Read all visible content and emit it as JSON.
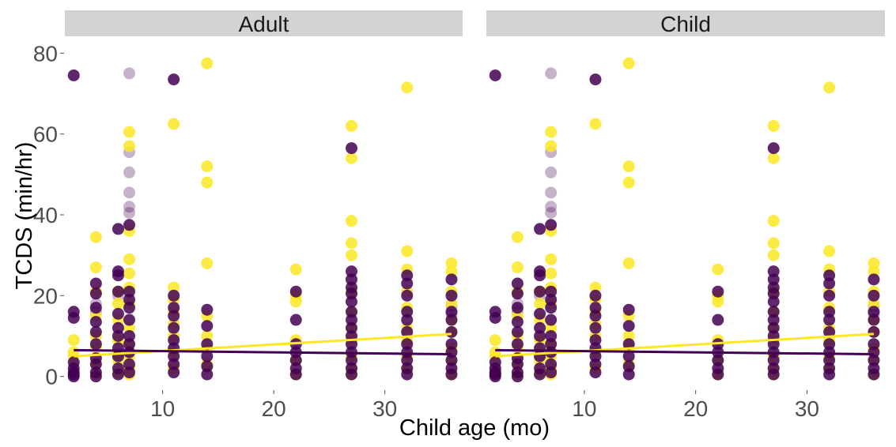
{
  "chart_data": {
    "type": "scatter",
    "xlabel": "Child age (mo)",
    "ylabel": "TCDS (min/hr)",
    "xlim": [
      1.2,
      37
    ],
    "ylim": [
      -3,
      83
    ],
    "x_ticks": [
      10,
      20,
      30
    ],
    "y_ticks": [
      0,
      20,
      40,
      60,
      80
    ],
    "grid": false,
    "legend": "none",
    "colors": {
      "purple": "#440154",
      "yellow": "#fde725"
    },
    "panels": [
      {
        "name": "Adult"
      },
      {
        "name": "Child"
      }
    ],
    "series": [
      {
        "color": "#440154",
        "points": [
          [
            2,
            74.5
          ],
          [
            2,
            16
          ],
          [
            2,
            14.5
          ],
          [
            2,
            3.5
          ],
          [
            2,
            2
          ],
          [
            2,
            1
          ],
          [
            2,
            0.5
          ],
          [
            2,
            0
          ],
          [
            4,
            23
          ],
          [
            4,
            20.5
          ],
          [
            4,
            17
          ],
          [
            4,
            13.5
          ],
          [
            4,
            11
          ],
          [
            4,
            8
          ],
          [
            4,
            4.5
          ],
          [
            4,
            3
          ],
          [
            4,
            1
          ],
          [
            4,
            0
          ],
          [
            6,
            36.5
          ],
          [
            6,
            26
          ],
          [
            6,
            25
          ],
          [
            6,
            21
          ],
          [
            6,
            15.5
          ],
          [
            6,
            12
          ],
          [
            6,
            10
          ],
          [
            6,
            7
          ],
          [
            6,
            5
          ],
          [
            6,
            2
          ],
          [
            6,
            0.5
          ],
          [
            7,
            37.5
          ],
          [
            7,
            21
          ],
          [
            7,
            19
          ],
          [
            7,
            17
          ],
          [
            7,
            14
          ],
          [
            7,
            10
          ],
          [
            7,
            8
          ],
          [
            7,
            6
          ],
          [
            7,
            3
          ],
          [
            7,
            1
          ],
          [
            11,
            73.5
          ],
          [
            11,
            20
          ],
          [
            11,
            17
          ],
          [
            11,
            15
          ],
          [
            11,
            12
          ],
          [
            11,
            9
          ],
          [
            11,
            7
          ],
          [
            11,
            5
          ],
          [
            11,
            3
          ],
          [
            11,
            1
          ],
          [
            14,
            16.5
          ],
          [
            14,
            12.5
          ],
          [
            14,
            8
          ],
          [
            14,
            5
          ],
          [
            14,
            2.5
          ],
          [
            14,
            0.5
          ],
          [
            22,
            21
          ],
          [
            22,
            14
          ],
          [
            22,
            8
          ],
          [
            22,
            6
          ],
          [
            22,
            4
          ],
          [
            22,
            2
          ],
          [
            22,
            0.5
          ],
          [
            27,
            56.5
          ],
          [
            27,
            26
          ],
          [
            27,
            24
          ],
          [
            27,
            22
          ],
          [
            27,
            20.5
          ],
          [
            27,
            18.5
          ],
          [
            27,
            16
          ],
          [
            27,
            14
          ],
          [
            27,
            12
          ],
          [
            27,
            10
          ],
          [
            27,
            8
          ],
          [
            27,
            6
          ],
          [
            27,
            4
          ],
          [
            27,
            2
          ],
          [
            27,
            0.5
          ],
          [
            32,
            25
          ],
          [
            32,
            23
          ],
          [
            32,
            20
          ],
          [
            32,
            16
          ],
          [
            32,
            14
          ],
          [
            32,
            11
          ],
          [
            32,
            8
          ],
          [
            32,
            6
          ],
          [
            32,
            4
          ],
          [
            32,
            2
          ],
          [
            32,
            0.5
          ],
          [
            36,
            24
          ],
          [
            36,
            20
          ],
          [
            36,
            16
          ],
          [
            36,
            14
          ],
          [
            36,
            11
          ],
          [
            36,
            8
          ],
          [
            36,
            6
          ],
          [
            36,
            4
          ],
          [
            36,
            2
          ],
          [
            36,
            0.5
          ]
        ],
        "trend": {
          "x": [
            2,
            36
          ],
          "y": [
            6.5,
            5.5
          ]
        }
      },
      {
        "color": "#fde725",
        "points": [
          [
            2,
            9
          ],
          [
            2,
            6
          ],
          [
            2,
            5
          ],
          [
            4,
            34.5
          ],
          [
            4,
            27
          ],
          [
            4,
            21
          ],
          [
            4,
            15
          ],
          [
            4,
            10
          ],
          [
            4,
            7
          ],
          [
            4,
            3
          ],
          [
            4,
            0.5
          ],
          [
            6,
            21
          ],
          [
            6,
            18
          ],
          [
            6,
            14
          ],
          [
            6,
            9
          ],
          [
            6,
            6
          ],
          [
            6,
            4
          ],
          [
            6,
            1
          ],
          [
            7,
            60.5
          ],
          [
            7,
            57
          ],
          [
            7,
            36
          ],
          [
            7,
            29
          ],
          [
            7,
            25.5
          ],
          [
            7,
            22
          ],
          [
            7,
            18
          ],
          [
            7,
            12
          ],
          [
            7,
            8
          ],
          [
            7,
            5
          ],
          [
            7,
            2
          ],
          [
            7,
            0.5
          ],
          [
            11,
            62.5
          ],
          [
            11,
            22
          ],
          [
            11,
            19
          ],
          [
            11,
            16
          ],
          [
            11,
            13
          ],
          [
            11,
            10
          ],
          [
            11,
            6
          ],
          [
            11,
            2
          ],
          [
            14,
            77.5
          ],
          [
            14,
            52
          ],
          [
            14,
            48
          ],
          [
            14,
            28
          ],
          [
            14,
            15
          ],
          [
            14,
            10
          ],
          [
            14,
            7
          ],
          [
            14,
            3
          ],
          [
            22,
            26.5
          ],
          [
            22,
            20
          ],
          [
            22,
            18.5
          ],
          [
            22,
            9
          ],
          [
            22,
            4
          ],
          [
            22,
            0.5
          ],
          [
            27,
            62
          ],
          [
            27,
            54
          ],
          [
            27,
            38.5
          ],
          [
            27,
            33
          ],
          [
            27,
            30
          ],
          [
            27,
            21
          ],
          [
            27,
            16
          ],
          [
            27,
            12
          ],
          [
            27,
            9
          ],
          [
            27,
            5
          ],
          [
            27,
            2
          ],
          [
            27,
            0.5
          ],
          [
            32,
            71.5
          ],
          [
            32,
            31
          ],
          [
            32,
            26.5
          ],
          [
            32,
            21
          ],
          [
            32,
            17
          ],
          [
            32,
            12
          ],
          [
            32,
            9
          ],
          [
            32,
            5
          ],
          [
            32,
            2
          ],
          [
            36,
            28
          ],
          [
            36,
            26
          ],
          [
            36,
            21
          ],
          [
            36,
            18
          ],
          [
            36,
            14
          ],
          [
            36,
            11
          ],
          [
            36,
            7
          ],
          [
            36,
            4
          ],
          [
            36,
            0.5
          ]
        ],
        "trend": {
          "x": [
            2,
            36
          ],
          "y": [
            5,
            10.5
          ]
        }
      },
      {
        "color": "#440154",
        "opacity": 0.3,
        "points": [
          [
            4,
            18
          ],
          [
            4,
            16
          ],
          [
            6,
            20
          ],
          [
            7,
            75
          ],
          [
            7,
            55.5
          ],
          [
            7,
            50.5
          ],
          [
            7,
            45.5
          ],
          [
            7,
            42
          ],
          [
            7,
            40.5
          ],
          [
            36,
            17.5
          ],
          [
            36,
            15.5
          ]
        ]
      }
    ]
  }
}
